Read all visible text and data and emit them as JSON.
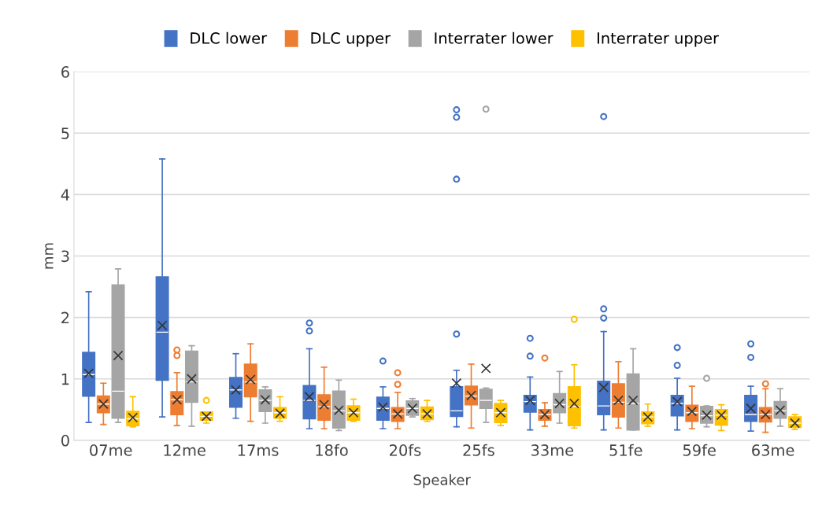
{
  "chart_data": {
    "type": "box",
    "xlabel": "Speaker",
    "ylabel": "mm",
    "categories": [
      "07me",
      "12me",
      "17ms",
      "18fo",
      "20fs",
      "25fs",
      "33me",
      "51fe",
      "59fe",
      "63me"
    ],
    "ylim": [
      0,
      6
    ],
    "yticks": [
      0,
      1,
      2,
      3,
      4,
      5,
      6
    ],
    "grid": "y",
    "legend": "top",
    "marker": "cross",
    "series": [
      {
        "name": "DLC lower",
        "color": "#4472c4",
        "boxes": [
          {
            "low": 0.29,
            "q1": 0.72,
            "median": 1.07,
            "q3": 1.43,
            "high": 2.42,
            "mean": 1.09
          },
          {
            "low": 0.38,
            "q1": 0.98,
            "median": 1.76,
            "q3": 2.66,
            "high": 4.58,
            "mean": 1.87
          },
          {
            "low": 0.36,
            "q1": 0.54,
            "median": 0.82,
            "q3": 1.02,
            "high": 1.41,
            "mean": 0.82
          },
          {
            "low": 0.19,
            "q1": 0.35,
            "median": 0.65,
            "q3": 0.89,
            "high": 1.49,
            "mean": 0.71,
            "outliers": [
              1.91,
              1.78
            ]
          },
          {
            "low": 0.19,
            "q1": 0.33,
            "median": 0.52,
            "q3": 0.7,
            "high": 0.87,
            "mean": 0.54,
            "outliers": [
              1.29
            ]
          },
          {
            "low": 0.22,
            "q1": 0.39,
            "median": 0.48,
            "q3": 0.87,
            "high": 1.14,
            "mean": 0.93,
            "outliers": [
              5.38,
              5.26,
              4.25,
              1.73
            ]
          },
          {
            "low": 0.17,
            "q1": 0.46,
            "median": 0.63,
            "q3": 0.73,
            "high": 1.03,
            "mean": 0.65,
            "outliers": [
              1.66,
              1.37
            ]
          },
          {
            "low": 0.17,
            "q1": 0.42,
            "median": 0.56,
            "q3": 0.96,
            "high": 1.77,
            "mean": 0.86,
            "outliers": [
              5.27,
              2.14,
              1.99
            ]
          },
          {
            "low": 0.17,
            "q1": 0.4,
            "median": 0.6,
            "q3": 0.73,
            "high": 1.01,
            "mean": 0.63,
            "outliers": [
              1.51,
              1.22
            ]
          },
          {
            "low": 0.15,
            "q1": 0.31,
            "median": 0.42,
            "q3": 0.73,
            "high": 0.88,
            "mean": 0.52,
            "outliers": [
              1.57,
              1.35
            ]
          }
        ]
      },
      {
        "name": "DLC upper",
        "color": "#ed7d31",
        "boxes": [
          {
            "low": 0.26,
            "q1": 0.45,
            "median": 0.59,
            "q3": 0.72,
            "high": 0.93,
            "mean": 0.59
          },
          {
            "low": 0.24,
            "q1": 0.42,
            "median": 0.66,
            "q3": 0.79,
            "high": 1.1,
            "mean": 0.66,
            "outliers": [
              1.47,
              1.38
            ]
          },
          {
            "low": 0.31,
            "q1": 0.71,
            "median": 0.95,
            "q3": 1.24,
            "high": 1.57,
            "mean": 0.99
          },
          {
            "low": 0.19,
            "q1": 0.33,
            "median": 0.55,
            "q3": 0.74,
            "high": 1.19,
            "mean": 0.58
          },
          {
            "low": 0.19,
            "q1": 0.31,
            "median": 0.43,
            "q3": 0.53,
            "high": 0.78,
            "mean": 0.43,
            "outliers": [
              1.1,
              0.91
            ]
          },
          {
            "low": 0.2,
            "q1": 0.58,
            "median": 0.72,
            "q3": 0.88,
            "high": 1.24,
            "mean": 0.73
          },
          {
            "low": 0.23,
            "q1": 0.33,
            "median": 0.42,
            "q3": 0.5,
            "high": 0.61,
            "mean": 0.42,
            "outliers": [
              1.34
            ]
          },
          {
            "low": 0.2,
            "q1": 0.38,
            "median": 0.62,
            "q3": 0.92,
            "high": 1.28,
            "mean": 0.65
          },
          {
            "low": 0.19,
            "q1": 0.31,
            "median": 0.45,
            "q3": 0.57,
            "high": 0.88,
            "mean": 0.47
          },
          {
            "low": 0.13,
            "q1": 0.3,
            "median": 0.42,
            "q3": 0.53,
            "high": 0.84,
            "mean": 0.42,
            "outliers": [
              0.92
            ]
          }
        ]
      },
      {
        "name": "Interrater lower",
        "color": "#a5a5a5",
        "boxes": [
          {
            "low": 0.29,
            "q1": 0.36,
            "median": 0.8,
            "q3": 2.53,
            "high": 2.79,
            "mean": 1.38
          },
          {
            "low": 0.23,
            "q1": 0.62,
            "median": 0.95,
            "q3": 1.45,
            "high": 1.54,
            "mean": 1.0
          },
          {
            "low": 0.28,
            "q1": 0.47,
            "median": 0.65,
            "q3": 0.82,
            "high": 0.87,
            "mean": 0.66
          },
          {
            "low": 0.16,
            "q1": 0.2,
            "median": 0.48,
            "q3": 0.8,
            "high": 0.98,
            "mean": 0.49
          },
          {
            "low": 0.38,
            "q1": 0.41,
            "median": 0.52,
            "q3": 0.64,
            "high": 0.68,
            "mean": 0.52
          },
          {
            "low": 0.29,
            "q1": 0.52,
            "median": 0.65,
            "q3": 0.83,
            "high": 0.85,
            "mean": 1.17,
            "outliers": [
              5.39
            ]
          },
          {
            "low": 0.28,
            "q1": 0.45,
            "median": 0.58,
            "q3": 0.76,
            "high": 1.12,
            "mean": 0.6
          },
          {
            "low": 0.17,
            "q1": 0.17,
            "median": 0.6,
            "q3": 1.08,
            "high": 1.49,
            "mean": 0.65
          },
          {
            "low": 0.22,
            "q1": 0.28,
            "median": 0.4,
            "q3": 0.55,
            "high": 0.56,
            "mean": 0.41,
            "outliers": [
              1.01
            ]
          },
          {
            "low": 0.23,
            "q1": 0.36,
            "median": 0.48,
            "q3": 0.63,
            "high": 0.84,
            "mean": 0.49
          }
        ]
      },
      {
        "name": "Interrater upper",
        "color": "#ffc000",
        "boxes": [
          {
            "low": 0.22,
            "q1": 0.24,
            "median": 0.35,
            "q3": 0.47,
            "high": 0.71,
            "mean": 0.37
          },
          {
            "low": 0.28,
            "q1": 0.33,
            "median": 0.39,
            "q3": 0.46,
            "high": 0.46,
            "mean": 0.39,
            "outliers": [
              0.65
            ]
          },
          {
            "low": 0.31,
            "q1": 0.36,
            "median": 0.45,
            "q3": 0.53,
            "high": 0.71,
            "mean": 0.44
          },
          {
            "low": 0.31,
            "q1": 0.33,
            "median": 0.45,
            "q3": 0.56,
            "high": 0.67,
            "mean": 0.45
          },
          {
            "low": 0.31,
            "q1": 0.34,
            "median": 0.43,
            "q3": 0.54,
            "high": 0.65,
            "mean": 0.43
          },
          {
            "low": 0.24,
            "q1": 0.29,
            "median": 0.45,
            "q3": 0.6,
            "high": 0.65,
            "mean": 0.45
          },
          {
            "low": 0.2,
            "q1": 0.24,
            "median": 0.55,
            "q3": 0.87,
            "high": 1.23,
            "mean": 0.6,
            "outliers": [
              1.97
            ]
          },
          {
            "low": 0.23,
            "q1": 0.27,
            "median": 0.38,
            "q3": 0.46,
            "high": 0.59,
            "mean": 0.38
          },
          {
            "low": 0.16,
            "q1": 0.25,
            "median": 0.41,
            "q3": 0.5,
            "high": 0.58,
            "mean": 0.41
          },
          {
            "low": 0.18,
            "q1": 0.21,
            "median": 0.28,
            "q3": 0.38,
            "high": 0.42,
            "mean": 0.28
          }
        ]
      }
    ]
  }
}
